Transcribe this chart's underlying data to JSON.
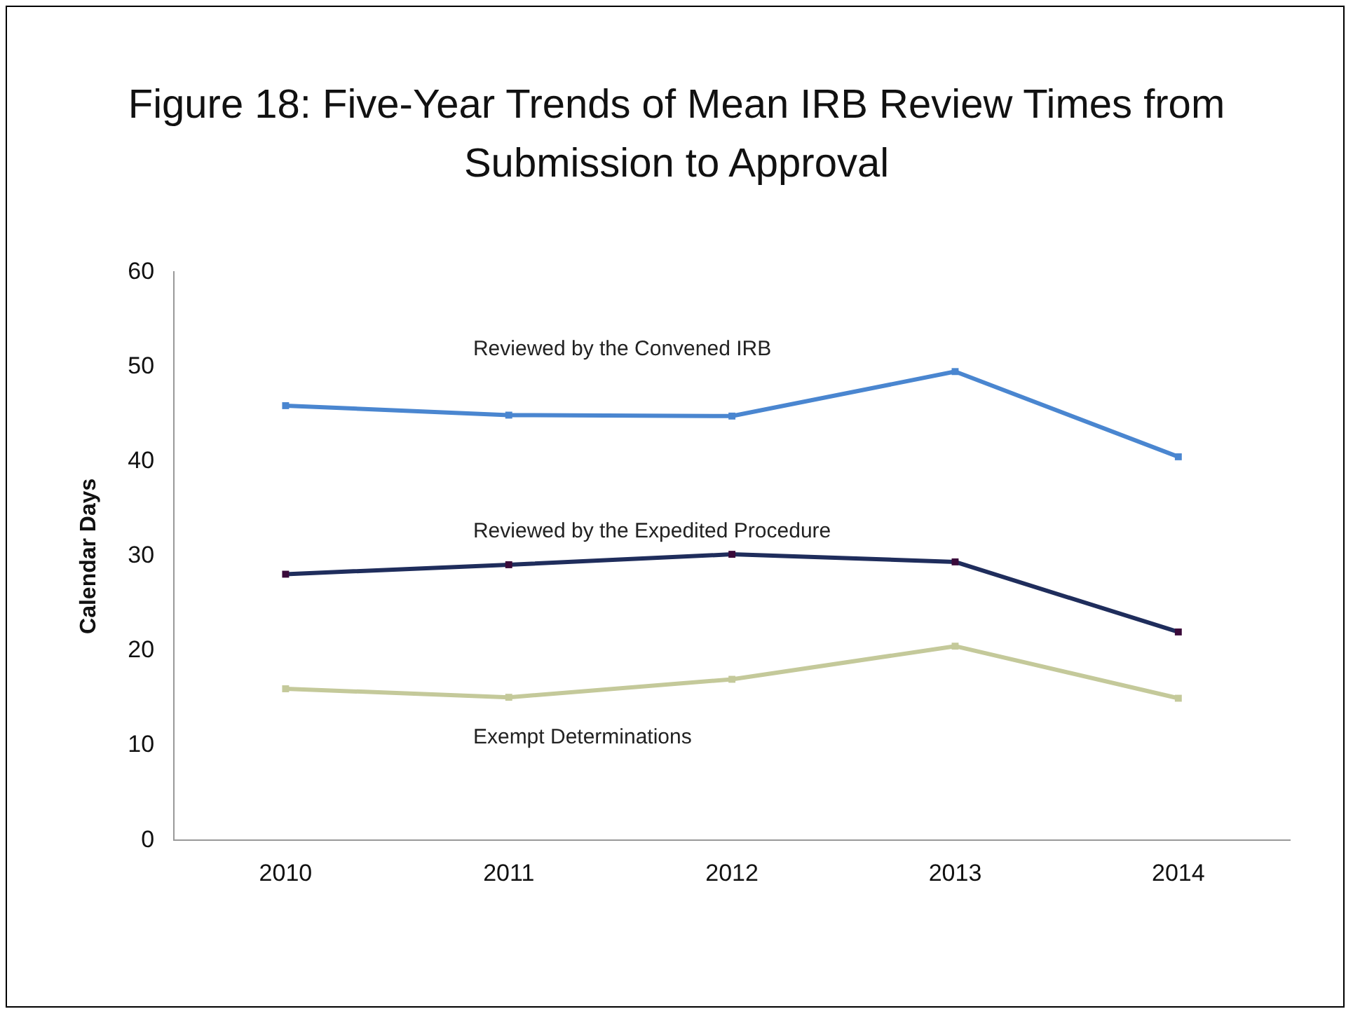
{
  "chart_data": {
    "type": "line",
    "title": "Figure 18: Five-Year Trends of Mean IRB Review Times from Submission to Approval",
    "ylabel": "Calendar Days",
    "categories": [
      "2010",
      "2011",
      "2012",
      "2013",
      "2014"
    ],
    "series": [
      {
        "name": "Reviewed by the Convened IRB",
        "color": "#4a86d0",
        "values": [
          45.9,
          44.9,
          44.8,
          49.5,
          40.5
        ]
      },
      {
        "name": "Reviewed by the Expedited Procedure",
        "color": "#1f2d5c",
        "values": [
          28.1,
          29.1,
          30.2,
          29.4,
          22.0
        ]
      },
      {
        "name": "Exempt Determinations",
        "color": "#c4c99a",
        "values": [
          16.0,
          15.1,
          17.0,
          20.5,
          15.0
        ]
      }
    ],
    "ylim": [
      0,
      60
    ],
    "yticks": [
      0,
      10,
      20,
      30,
      40,
      50,
      60
    ],
    "grid": false,
    "legend": false,
    "marker": "square",
    "line_style": "solid"
  }
}
